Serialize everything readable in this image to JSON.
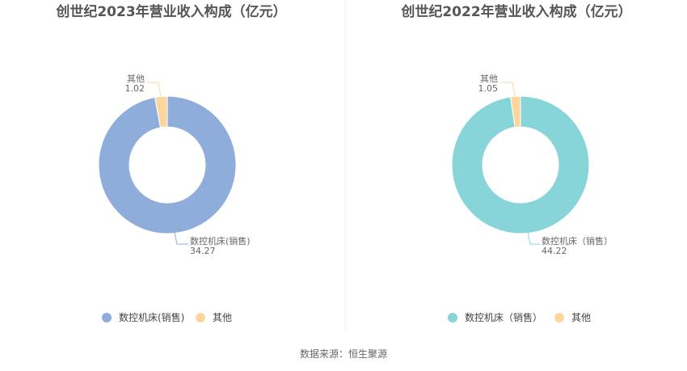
{
  "chart_data": [
    {
      "type": "pie",
      "title": "创世纪2023年营业收入构成（亿元）",
      "series": [
        {
          "name": "数控机床(销售)",
          "label": "数控机床(销售)",
          "value": 34.27,
          "value_text": "34.27",
          "color": "#8eadda"
        },
        {
          "name": "其他",
          "label": "其他",
          "value": 1.02,
          "value_text": "1.02",
          "color": "#fdd69d"
        }
      ],
      "legend_position": "bottom"
    },
    {
      "type": "pie",
      "title": "创世纪2022年营业收入构成（亿元）",
      "series": [
        {
          "name": "数控机床（销售）",
          "label": "数控机床（销售）",
          "value": 44.22,
          "value_text": "44.22",
          "color": "#88d5d9"
        },
        {
          "name": "其他",
          "label": "其他",
          "value": 1.05,
          "value_text": "1.05",
          "color": "#fdd69d"
        }
      ],
      "legend_position": "bottom"
    }
  ],
  "footer": {
    "source": "数据来源：恒生聚源"
  },
  "colors": {
    "divider": "#eeeeee",
    "title": "#555555",
    "label": "#666666",
    "leader": "#bbbbbb"
  }
}
